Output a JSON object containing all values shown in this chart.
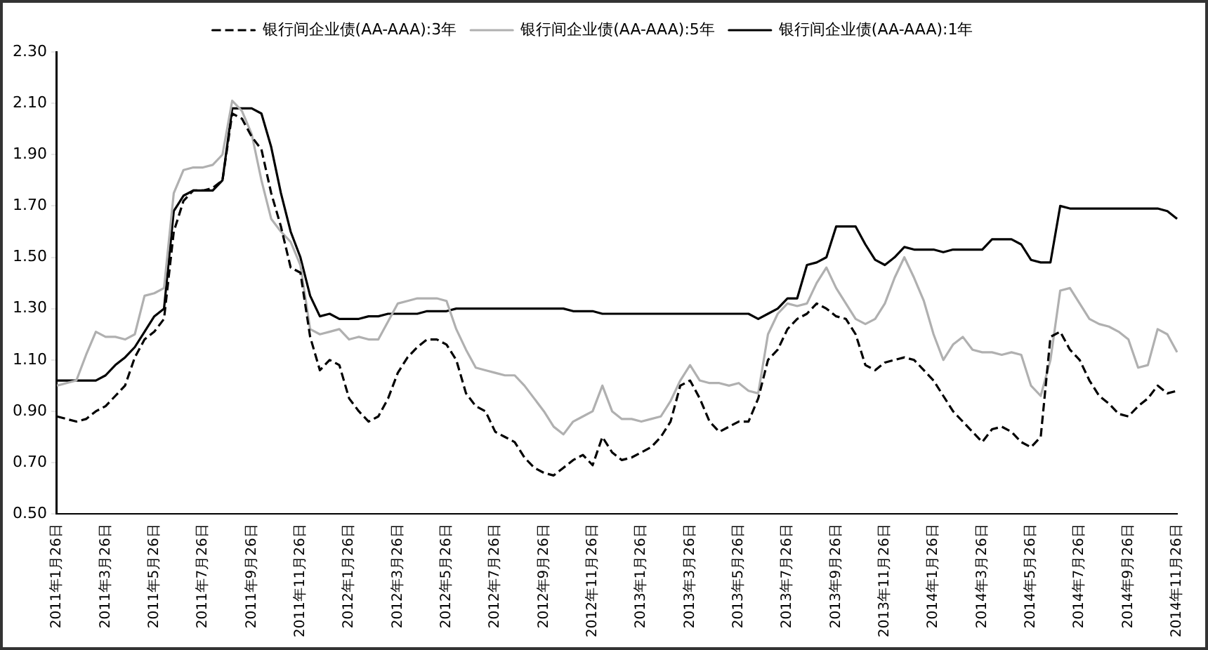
{
  "chart_data": {
    "type": "line",
    "legend": "top",
    "marker": "none",
    "grid": false,
    "categories": [
      "2011年1月26日",
      null,
      null,
      null,
      null,
      "2011年3月26日",
      null,
      null,
      null,
      null,
      "2011年5月26日",
      null,
      null,
      null,
      null,
      "2011年7月26日",
      null,
      null,
      null,
      null,
      "2011年9月26日",
      null,
      null,
      null,
      null,
      "2011年11月26日",
      null,
      null,
      null,
      null,
      "2012年1月26日",
      null,
      null,
      null,
      null,
      "2012年3月26日",
      null,
      null,
      null,
      null,
      "2012年5月26日",
      null,
      null,
      null,
      null,
      "2012年7月26日",
      null,
      null,
      null,
      null,
      "2012年9月26日",
      null,
      null,
      null,
      null,
      "2012年11月26日",
      null,
      null,
      null,
      null,
      "2013年1月26日",
      null,
      null,
      null,
      null,
      "2013年3月26日",
      null,
      null,
      null,
      null,
      "2013年5月26日",
      null,
      null,
      null,
      null,
      "2013年7月26日",
      null,
      null,
      null,
      null,
      "2013年9月26日",
      null,
      null,
      null,
      null,
      "2013年11月26日",
      null,
      null,
      null,
      null,
      "2014年1月26日",
      null,
      null,
      null,
      null,
      "2014年3月26日",
      null,
      null,
      null,
      null,
      "2014年5月26日",
      null,
      null,
      null,
      null,
      "2014年7月26日",
      null,
      null,
      null,
      null,
      "2014年9月26日",
      null,
      null,
      null,
      null,
      "2014年11月26日"
    ],
    "ylim": [
      0.5,
      2.3
    ],
    "yticks": [
      {
        "value": 0.5,
        "label": "0.50"
      },
      {
        "value": 0.7,
        "label": "0.70"
      },
      {
        "value": 0.9,
        "label": "0.90"
      },
      {
        "value": 1.1,
        "label": "1.10"
      },
      {
        "value": 1.3,
        "label": "1.30"
      },
      {
        "value": 1.5,
        "label": "1.50"
      },
      {
        "value": 1.7,
        "label": "1.70"
      },
      {
        "value": 1.9,
        "label": "1.90"
      },
      {
        "value": 2.1,
        "label": "2.10"
      },
      {
        "value": 2.3,
        "label": "2.30"
      }
    ],
    "series": [
      {
        "name": "银行间企业债(AA-AAA):3年",
        "color": "#000000",
        "line_style": "dashed",
        "values": [
          0.88,
          0.87,
          0.86,
          0.87,
          0.9,
          0.92,
          0.96,
          1.0,
          1.11,
          1.18,
          1.21,
          1.26,
          1.6,
          1.72,
          1.76,
          1.76,
          1.77,
          1.8,
          2.06,
          2.04,
          1.97,
          1.92,
          1.75,
          1.62,
          1.46,
          1.44,
          1.19,
          1.06,
          1.1,
          1.08,
          0.95,
          0.9,
          0.86,
          0.88,
          0.95,
          1.05,
          1.11,
          1.15,
          1.18,
          1.18,
          1.16,
          1.1,
          0.97,
          0.92,
          0.9,
          0.82,
          0.8,
          0.78,
          0.72,
          0.68,
          0.66,
          0.65,
          0.68,
          0.71,
          0.73,
          0.69,
          0.8,
          0.74,
          0.71,
          0.72,
          0.74,
          0.76,
          0.8,
          0.86,
          1.0,
          1.02,
          0.95,
          0.86,
          0.82,
          0.84,
          0.86,
          0.86,
          0.95,
          1.1,
          1.14,
          1.22,
          1.26,
          1.28,
          1.32,
          1.3,
          1.27,
          1.26,
          1.2,
          1.08,
          1.06,
          1.09,
          1.1,
          1.11,
          1.1,
          1.06,
          1.02,
          0.96,
          0.9,
          0.86,
          0.82,
          0.78,
          0.83,
          0.84,
          0.82,
          0.78,
          0.76,
          0.8,
          1.19,
          1.21,
          1.14,
          1.1,
          1.02,
          0.96,
          0.93,
          0.89,
          0.88,
          0.92,
          0.95,
          1.0,
          0.97,
          0.98
        ]
      },
      {
        "name": "银行间企业债(AA-AAA):5年",
        "color": "#b0b0b0",
        "line_style": "solid",
        "values": [
          1.0,
          1.01,
          1.02,
          1.12,
          1.21,
          1.19,
          1.19,
          1.18,
          1.2,
          1.35,
          1.36,
          1.38,
          1.75,
          1.84,
          1.85,
          1.85,
          1.86,
          1.9,
          2.11,
          2.07,
          1.98,
          1.8,
          1.65,
          1.6,
          1.56,
          1.47,
          1.22,
          1.2,
          1.21,
          1.22,
          1.18,
          1.19,
          1.18,
          1.18,
          1.25,
          1.32,
          1.33,
          1.34,
          1.34,
          1.34,
          1.33,
          1.22,
          1.14,
          1.07,
          1.06,
          1.05,
          1.04,
          1.04,
          1.0,
          0.95,
          0.9,
          0.84,
          0.81,
          0.86,
          0.88,
          0.9,
          1.0,
          0.9,
          0.87,
          0.87,
          0.86,
          0.87,
          0.88,
          0.94,
          1.02,
          1.08,
          1.02,
          1.01,
          1.01,
          1.0,
          1.01,
          0.98,
          0.97,
          1.2,
          1.28,
          1.32,
          1.31,
          1.32,
          1.4,
          1.46,
          1.38,
          1.32,
          1.26,
          1.24,
          1.26,
          1.32,
          1.42,
          1.5,
          1.42,
          1.33,
          1.2,
          1.1,
          1.16,
          1.19,
          1.14,
          1.13,
          1.13,
          1.12,
          1.13,
          1.12,
          1.0,
          0.96,
          1.1,
          1.37,
          1.38,
          1.32,
          1.26,
          1.24,
          1.23,
          1.21,
          1.18,
          1.07,
          1.08,
          1.22,
          1.2,
          1.13
        ]
      },
      {
        "name": "银行间企业债(AA-AAA):1年",
        "color": "#000000",
        "line_style": "solid",
        "values": [
          1.02,
          1.02,
          1.02,
          1.02,
          1.02,
          1.04,
          1.08,
          1.11,
          1.15,
          1.21,
          1.27,
          1.3,
          1.68,
          1.74,
          1.76,
          1.76,
          1.76,
          1.8,
          2.08,
          2.08,
          2.08,
          2.06,
          1.93,
          1.75,
          1.6,
          1.5,
          1.35,
          1.27,
          1.28,
          1.26,
          1.26,
          1.26,
          1.27,
          1.27,
          1.28,
          1.28,
          1.28,
          1.28,
          1.29,
          1.29,
          1.29,
          1.3,
          1.3,
          1.3,
          1.3,
          1.3,
          1.3,
          1.3,
          1.3,
          1.3,
          1.3,
          1.3,
          1.3,
          1.29,
          1.29,
          1.29,
          1.28,
          1.28,
          1.28,
          1.28,
          1.28,
          1.28,
          1.28,
          1.28,
          1.28,
          1.28,
          1.28,
          1.28,
          1.28,
          1.28,
          1.28,
          1.28,
          1.26,
          1.28,
          1.3,
          1.34,
          1.34,
          1.47,
          1.48,
          1.5,
          1.62,
          1.62,
          1.62,
          1.55,
          1.49,
          1.47,
          1.5,
          1.54,
          1.53,
          1.53,
          1.53,
          1.52,
          1.53,
          1.53,
          1.53,
          1.53,
          1.57,
          1.57,
          1.57,
          1.55,
          1.49,
          1.48,
          1.48,
          1.7,
          1.69,
          1.69,
          1.69,
          1.69,
          1.69,
          1.69,
          1.69,
          1.69,
          1.69,
          1.69,
          1.68,
          1.65
        ]
      }
    ]
  }
}
